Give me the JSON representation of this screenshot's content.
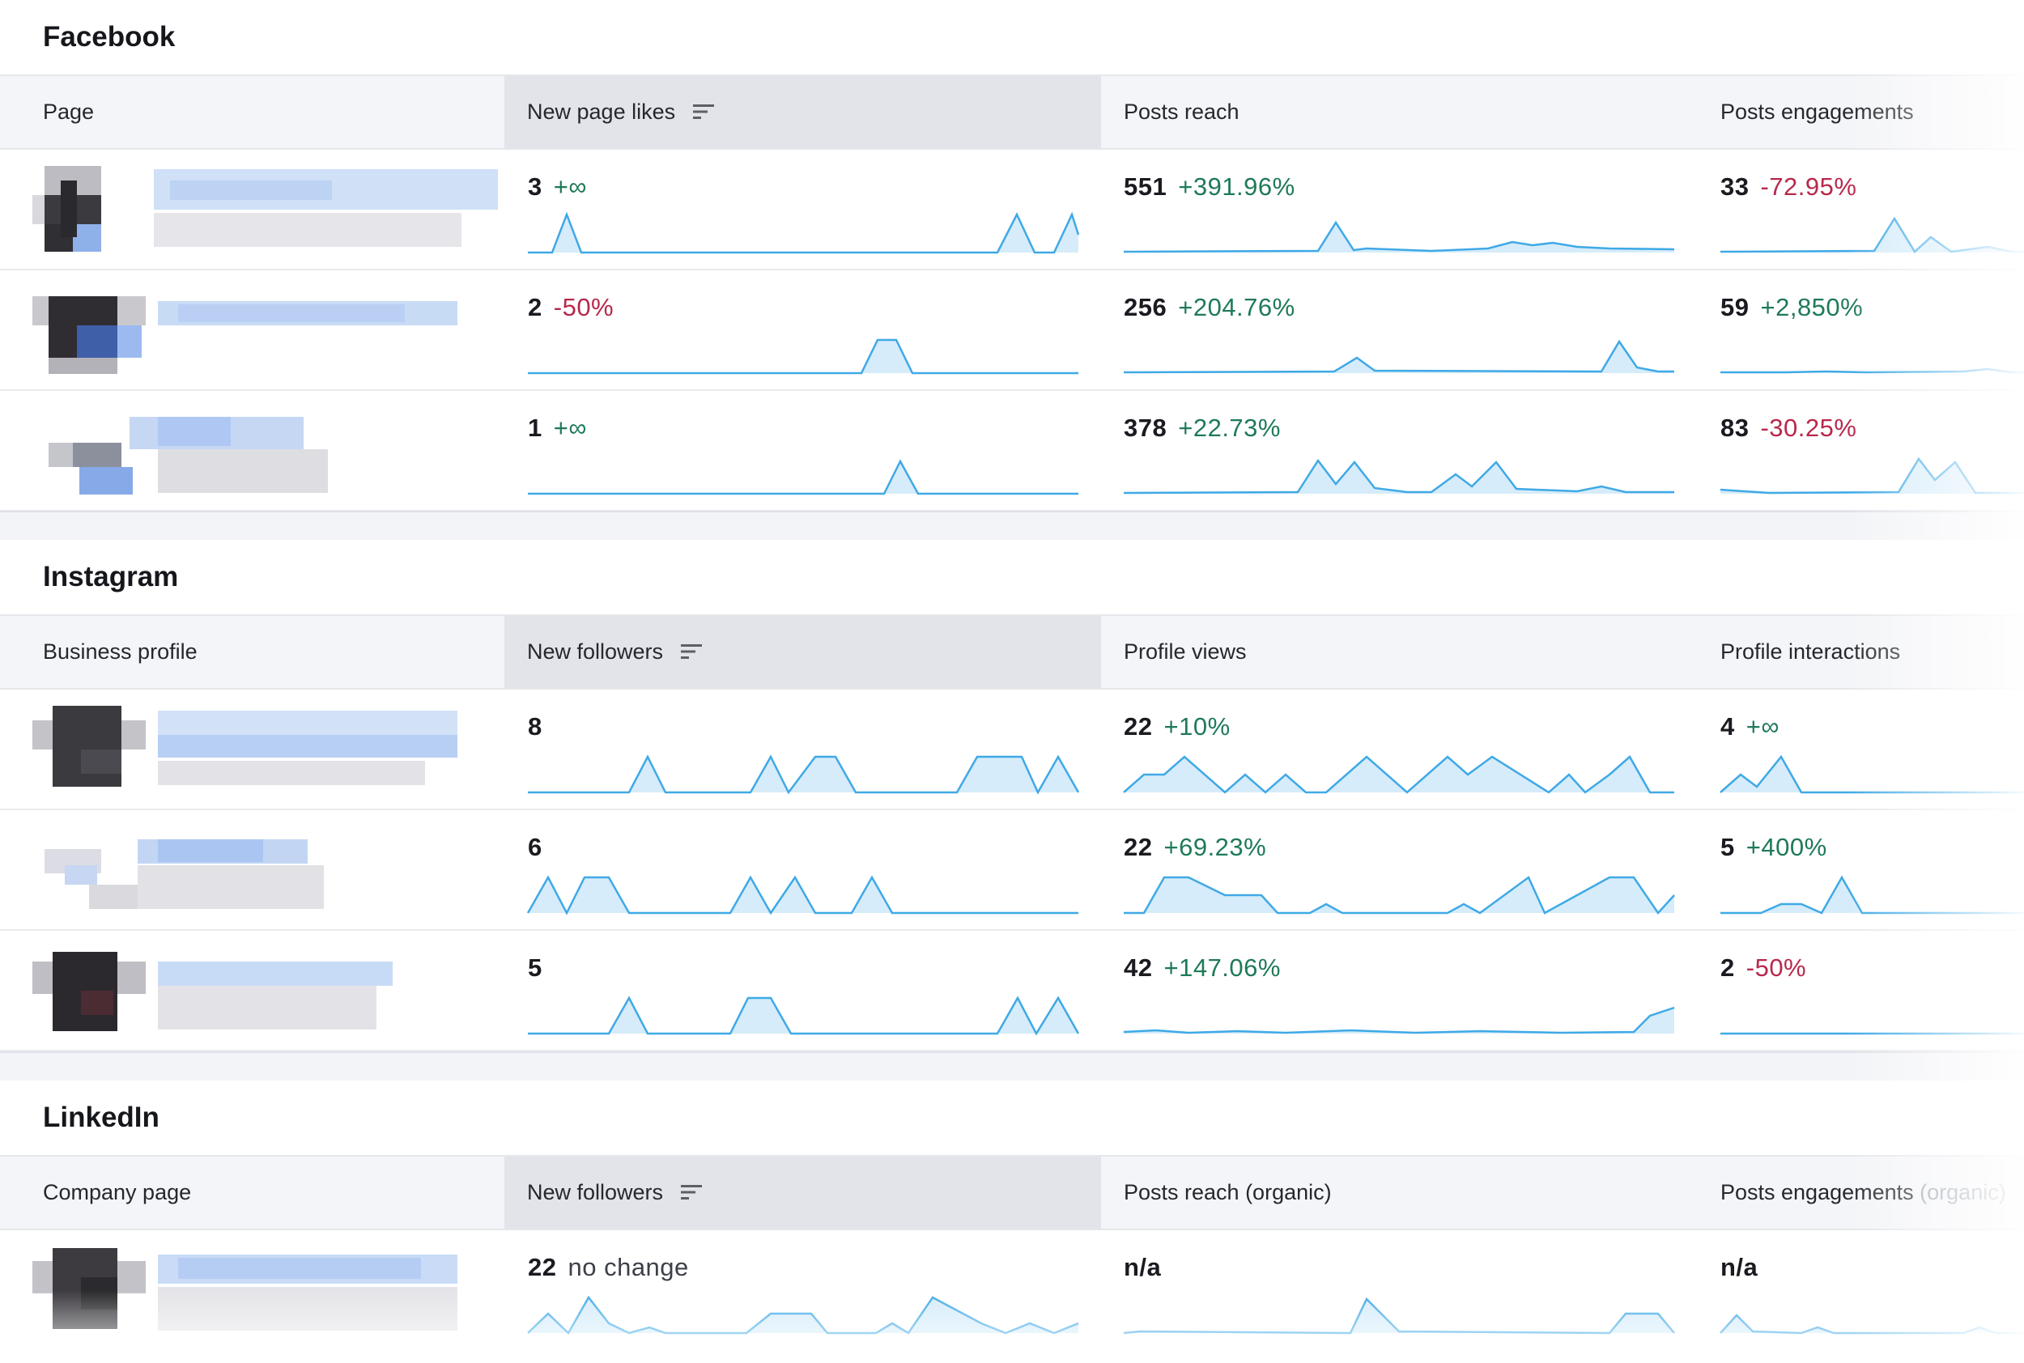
{
  "sections": [
    {
      "id": "facebook",
      "title": "Facebook",
      "headers": [
        "Page",
        "New page likes",
        "Posts reach",
        "Posts engagements"
      ],
      "header_muted": "",
      "rows": [
        {
          "c2": {
            "value": "3",
            "change": "+∞",
            "tone": "pos"
          },
          "c3": {
            "value": "551",
            "change": "+391.96%",
            "tone": "pos"
          },
          "c4": {
            "value": "33",
            "change": "-72.95%",
            "tone": "neg"
          }
        },
        {
          "c2": {
            "value": "2",
            "change": "-50%",
            "tone": "neg"
          },
          "c3": {
            "value": "256",
            "change": "+204.76%",
            "tone": "pos"
          },
          "c4": {
            "value": "59",
            "change": "+2,850%",
            "tone": "pos"
          }
        },
        {
          "c2": {
            "value": "1",
            "change": "+∞",
            "tone": "pos"
          },
          "c3": {
            "value": "378",
            "change": "+22.73%",
            "tone": "pos"
          },
          "c4": {
            "value": "83",
            "change": "-30.25%",
            "tone": "neg"
          }
        }
      ]
    },
    {
      "id": "instagram",
      "title": "Instagram",
      "headers": [
        "Business profile",
        "New followers",
        "Profile views",
        "Profile interactions"
      ],
      "header_muted": "",
      "rows": [
        {
          "c2": {
            "value": "8",
            "change": "",
            "tone": "pos"
          },
          "c3": {
            "value": "22",
            "change": "+10%",
            "tone": "pos"
          },
          "c4": {
            "value": "4",
            "change": "+∞",
            "tone": "pos"
          }
        },
        {
          "c2": {
            "value": "6",
            "change": "",
            "tone": "pos"
          },
          "c3": {
            "value": "22",
            "change": "+69.23%",
            "tone": "pos"
          },
          "c4": {
            "value": "5",
            "change": "+400%",
            "tone": "pos"
          }
        },
        {
          "c2": {
            "value": "5",
            "change": "",
            "tone": "pos"
          },
          "c3": {
            "value": "42",
            "change": "+147.06%",
            "tone": "pos"
          },
          "c4": {
            "value": "2",
            "change": "-50%",
            "tone": "neg"
          }
        }
      ]
    },
    {
      "id": "linkedin",
      "title": "LinkedIn",
      "headers": [
        "Company page",
        "New followers",
        "Posts reach (organic)",
        "Posts engagements"
      ],
      "header_muted": "(organic)",
      "rows": [
        {
          "c2": {
            "value": "22",
            "change": "no change",
            "tone": "neutral"
          },
          "c3": {
            "value": "n/a",
            "change": "",
            "tone": "na"
          },
          "c4": {
            "value": "n/a",
            "change": "",
            "tone": "na"
          }
        }
      ]
    }
  ],
  "colors": {
    "positive": "#1f7a58",
    "negative": "#b8284b",
    "spark_line": "#3fa9e6",
    "spark_fill": "#d6ecfa"
  },
  "icons": {
    "sort": "sort-descending-icon"
  }
}
